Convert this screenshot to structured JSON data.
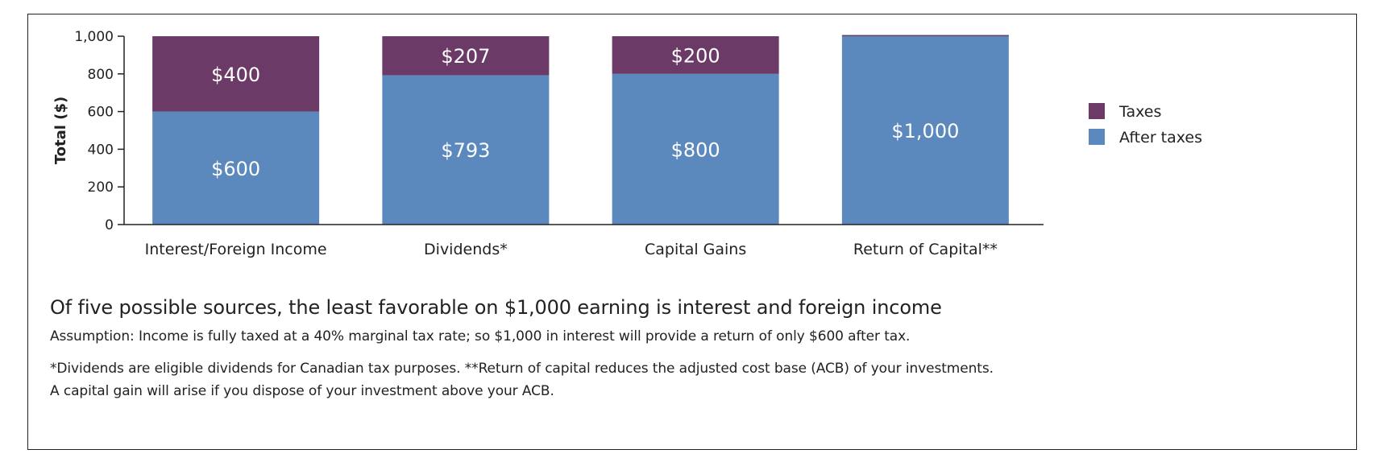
{
  "chart_data": {
    "type": "bar",
    "stacked": true,
    "categories": [
      "Interest/Foreign Income",
      "Dividends*",
      "Capital Gains",
      "Return of Capital**"
    ],
    "series": [
      {
        "name": "After taxes",
        "values": [
          600,
          793,
          800,
          1000
        ],
        "color": "#5b89bd",
        "labels": [
          "$600",
          "$793",
          "$800",
          "$1,000"
        ]
      },
      {
        "name": "Taxes",
        "values": [
          400,
          207,
          200,
          0
        ],
        "color": "#6b3a67",
        "labels": [
          "$400",
          "$207",
          "$200",
          ""
        ]
      }
    ],
    "ylabel": "Total ($)",
    "ylim": [
      0,
      1000
    ],
    "yticks": [
      0,
      200,
      400,
      600,
      800,
      1000
    ],
    "ytick_labels": [
      "0",
      "200",
      "400",
      "600",
      "800",
      "1,000"
    ],
    "legend_position": "right",
    "grid": false
  },
  "caption": "Of five possible sources, the least favorable on $1,000 earning is interest and foreign income",
  "notes": {
    "assumption": "Assumption: Income is fully taxed at a 40% marginal tax rate; so $1,000 in interest will provide a return of only $600 after tax.",
    "footnote_1": "*Dividends are eligible dividends for Canadian tax purposes. **Return of capital reduces the adjusted cost base (ACB) of your investments.",
    "footnote_2": "A capital gain will arise if you dispose of your investment above your ACB."
  }
}
